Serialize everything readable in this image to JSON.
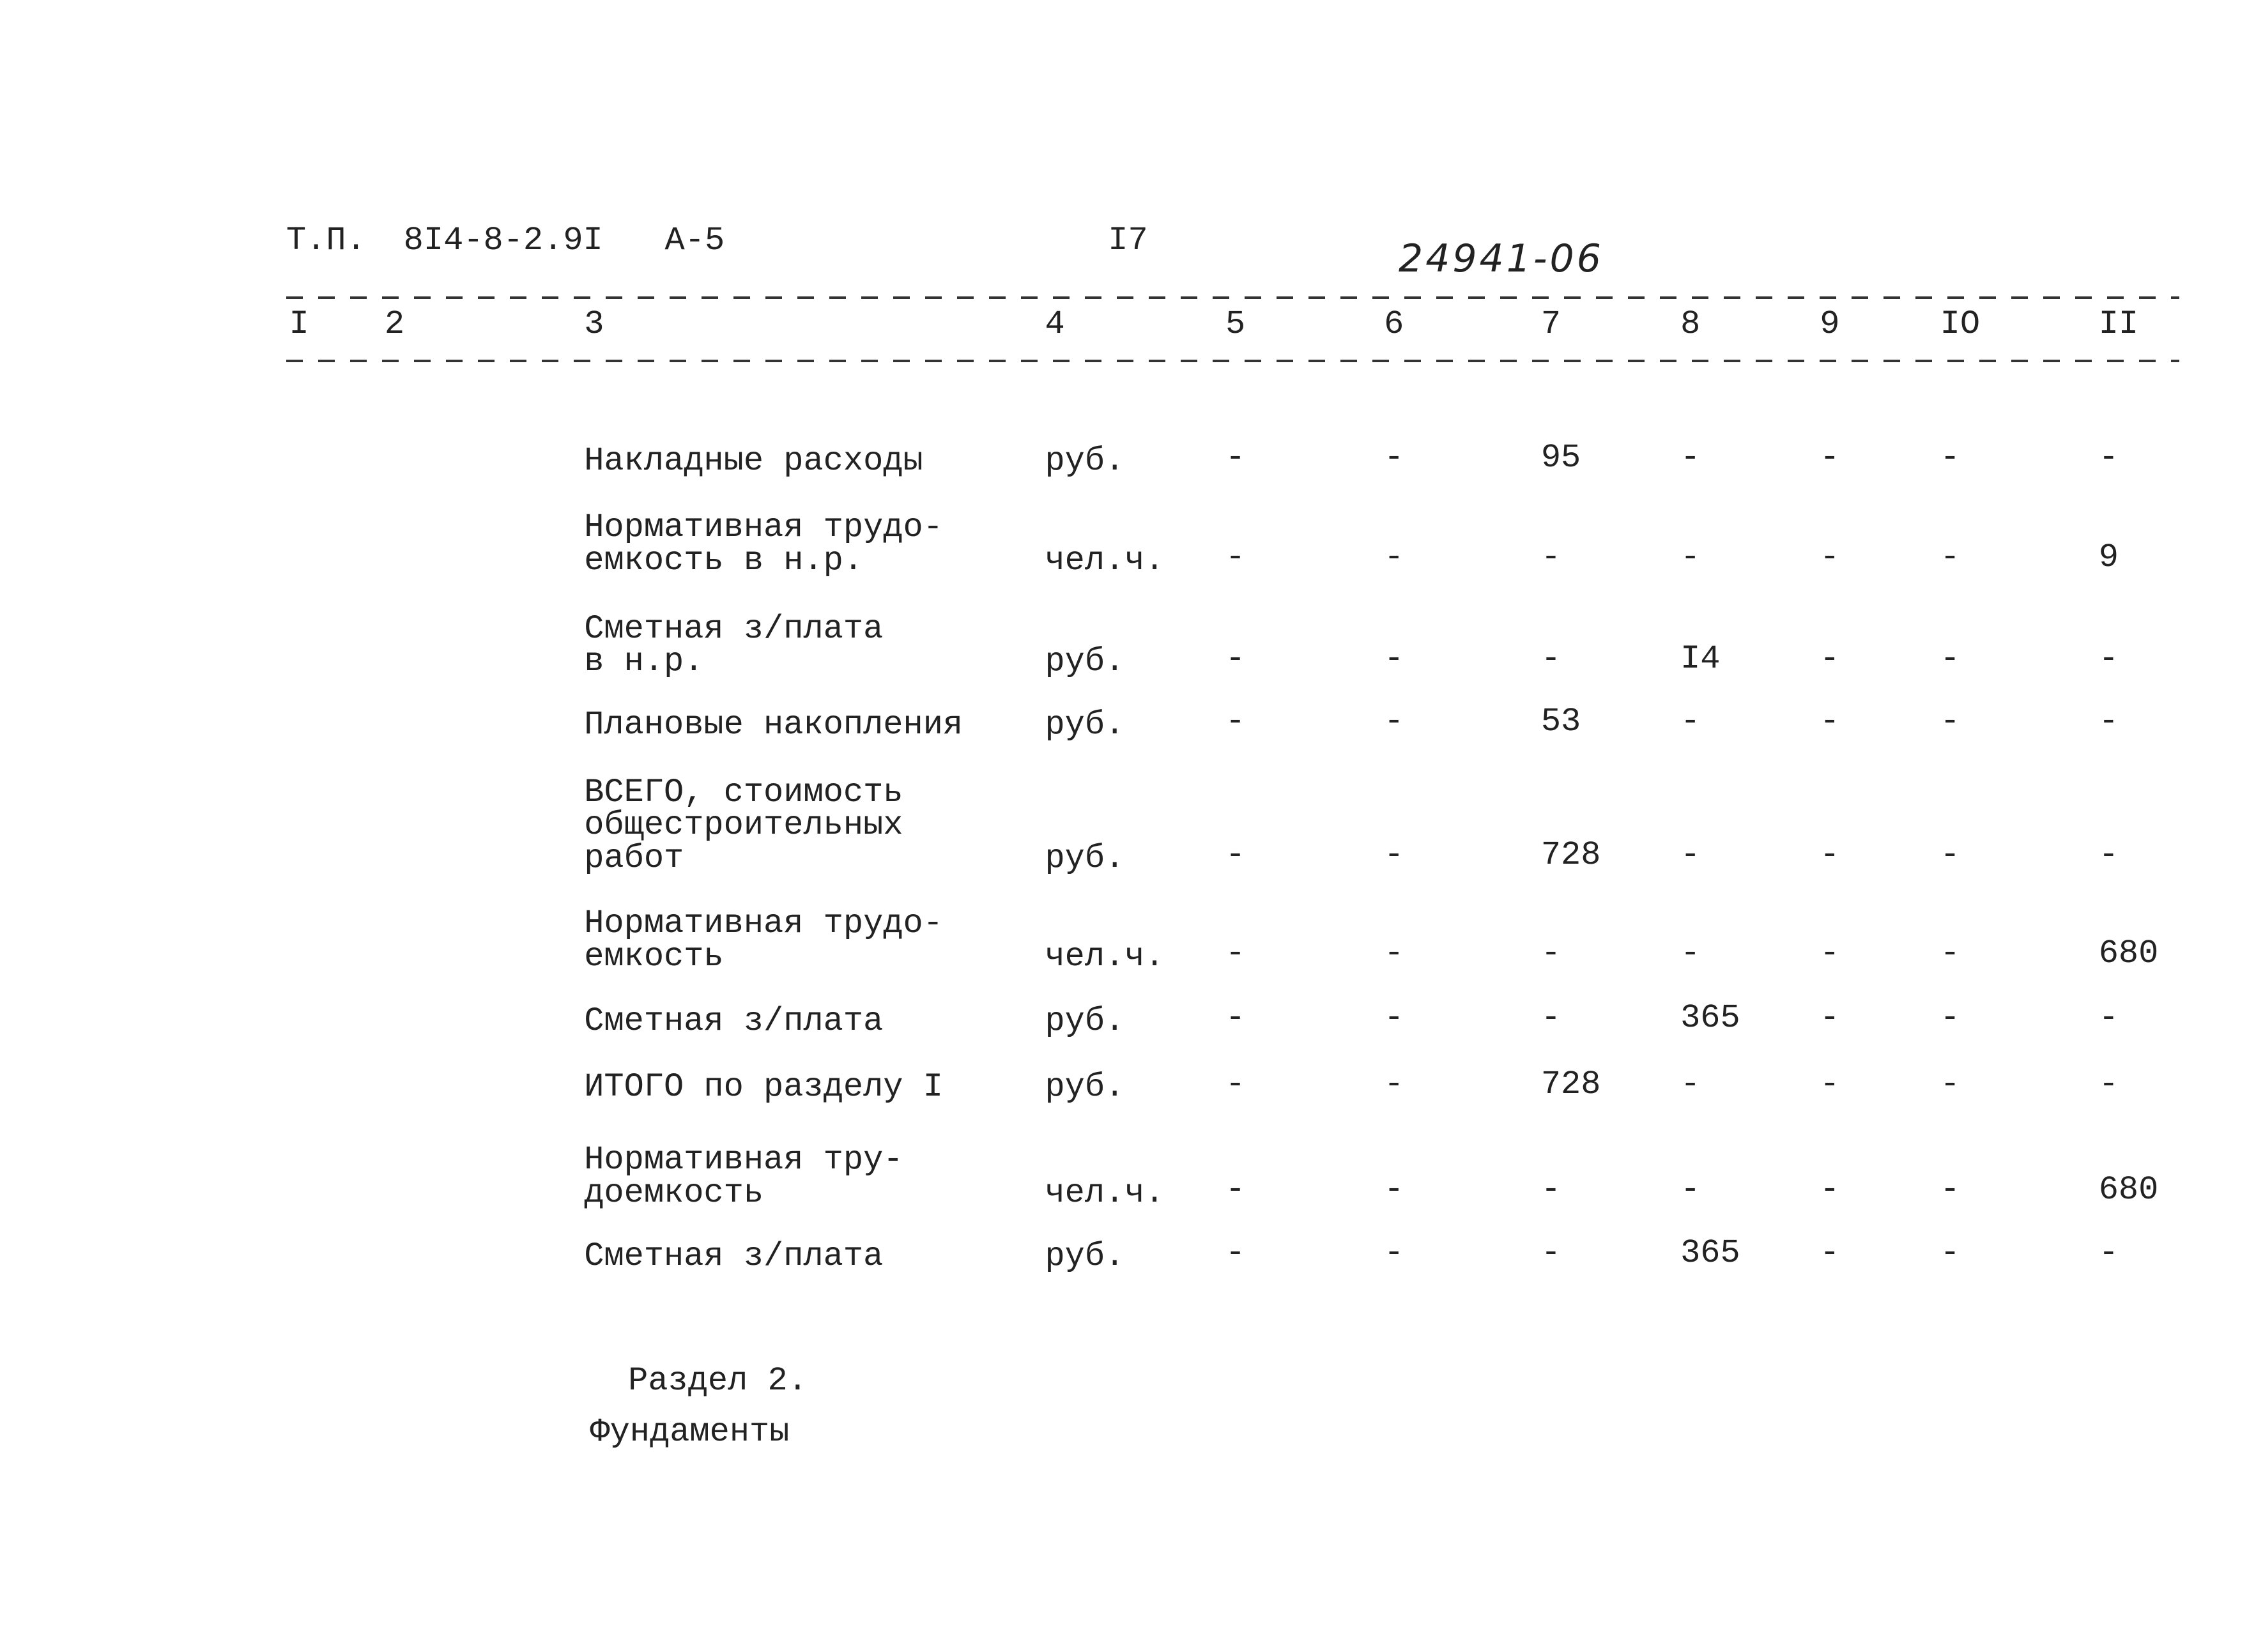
{
  "header": {
    "series": "Т.П.",
    "code": "8I4-8-2.9I",
    "album": "А-5",
    "page": "I7",
    "inventory": "24941-06"
  },
  "table": {
    "columns": [
      "I",
      "2",
      "3",
      "4",
      "5",
      "6",
      "7",
      "8",
      "9",
      "IO",
      "II"
    ],
    "rows": [
      {
        "name": [
          "Накладные расходы"
        ],
        "unit": "руб.",
        "cells": [
          "-",
          "-",
          95,
          "-",
          "-",
          "-",
          "-"
        ]
      },
      {
        "name": [
          "Нормативная трудо-",
          "емкость в н.р."
        ],
        "unit": "чел.ч.",
        "cells": [
          "-",
          "-",
          "-",
          "-",
          "-",
          "-",
          9
        ]
      },
      {
        "name": [
          "Сметная з/плата",
          "в н.р."
        ],
        "unit": "руб.",
        "cells": [
          "-",
          "-",
          "-",
          "I4",
          "-",
          "-",
          "-"
        ]
      },
      {
        "name": [
          "Плановые накопления"
        ],
        "unit": "руб.",
        "cells": [
          "-",
          "-",
          53,
          "-",
          "-",
          "-",
          "-"
        ]
      },
      {
        "name": [
          "ВСЕГО, стоимость",
          "общестроительных",
          "работ"
        ],
        "unit": "руб.",
        "cells": [
          "-",
          "-",
          728,
          "-",
          "-",
          "-",
          "-"
        ]
      },
      {
        "name": [
          "Нормативная трудо-",
          "емкость"
        ],
        "unit": "чел.ч.",
        "cells": [
          "-",
          "-",
          "-",
          "-",
          "-",
          "-",
          680
        ]
      },
      {
        "name": [
          "Сметная з/плата"
        ],
        "unit": "руб.",
        "cells": [
          "-",
          "-",
          "-",
          365,
          "-",
          "-",
          "-"
        ]
      },
      {
        "name": [
          "ИТОГО по разделу I"
        ],
        "unit": "руб.",
        "cells": [
          "-",
          "-",
          728,
          "-",
          "-",
          "-",
          "-"
        ]
      },
      {
        "name": [
          "Нормативная тру-",
          "доемкость"
        ],
        "unit": "чел.ч.",
        "cells": [
          "-",
          "-",
          "-",
          "-",
          "-",
          "-",
          680
        ]
      },
      {
        "name": [
          "Сметная з/плата"
        ],
        "unit": "руб.",
        "cells": [
          "-",
          "-",
          "-",
          365,
          "-",
          "-",
          "-"
        ]
      }
    ]
  },
  "section": {
    "number": "Раздел 2.",
    "title": "Фундаменты"
  }
}
